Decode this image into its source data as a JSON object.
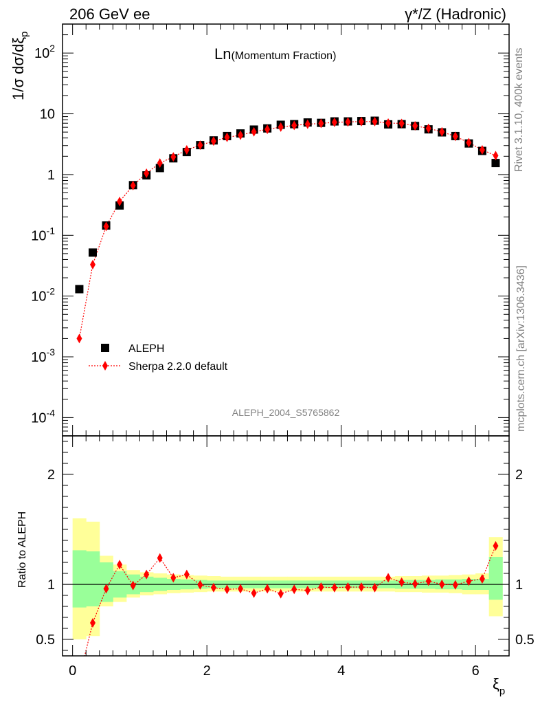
{
  "header": {
    "left_title": "206 GeV ee",
    "right_title_sym": "γ*/Z",
    "right_title_rest": " (Hadronic)"
  },
  "side_labels": {
    "rivet": "Rivet 3.1.10,  400k events",
    "mcplots": "mcplots.cern.ch [arXiv:1306.3436]"
  },
  "chart_data": [
    {
      "type": "scatter",
      "title_big": "Ln",
      "title_small": "(Momentum Fraction)",
      "ylabel": "1/σ dσ/dξ",
      "ylabel_sub": "p",
      "analysis_id": "ALEPH_2004_S5765862",
      "yscale": "log",
      "ylim": [
        5e-05,
        300
      ],
      "xlim": [
        -0.15,
        6.5
      ],
      "y_tick_labels": [
        "10^-4",
        "10^-3",
        "10^-2",
        "10^-1",
        "1",
        "10",
        "10^2"
      ],
      "x": [
        0.1,
        0.3,
        0.5,
        0.7,
        0.9,
        1.1,
        1.3,
        1.5,
        1.7,
        1.9,
        2.1,
        2.3,
        2.5,
        2.7,
        2.9,
        3.1,
        3.3,
        3.5,
        3.7,
        3.9,
        4.1,
        4.3,
        4.5,
        4.7,
        4.9,
        5.1,
        5.3,
        5.5,
        5.7,
        5.9,
        6.1,
        6.3
      ],
      "series": [
        {
          "name": "ALEPH",
          "marker": "square",
          "color": "#000000",
          "values": [
            0.013,
            0.052,
            0.145,
            0.31,
            0.67,
            0.97,
            1.28,
            1.85,
            2.35,
            3.05,
            3.65,
            4.3,
            4.75,
            5.5,
            5.75,
            6.6,
            6.75,
            7.2,
            7.1,
            7.5,
            7.5,
            7.6,
            7.7,
            6.7,
            6.75,
            6.3,
            5.55,
            4.95,
            4.3,
            3.25,
            2.45,
            1.55
          ]
        },
        {
          "name": "Sherpa 2.2.0 default",
          "marker": "diamond",
          "line": "dotted",
          "color": "#ff0000",
          "values": [
            0.002,
            0.033,
            0.14,
            0.36,
            0.66,
            1.05,
            1.55,
            1.95,
            2.55,
            3.05,
            3.55,
            4.1,
            4.45,
            5.05,
            5.55,
            6.05,
            6.45,
            6.75,
            6.95,
            7.25,
            7.35,
            7.45,
            7.45,
            7.05,
            6.95,
            6.35,
            5.75,
            5.05,
            4.25,
            3.35,
            2.55,
            2.05
          ]
        }
      ],
      "legend_position": "bottom-left"
    },
    {
      "type": "line",
      "ylabel": "Ratio to ALEPH",
      "xlabel": "ξ",
      "xlabel_sub": "p",
      "ylim": [
        0.35,
        2.35
      ],
      "xlim": [
        -0.15,
        6.5
      ],
      "y_tick_labels": [
        "0.5",
        "1",
        "2"
      ],
      "x_tick_labels": [
        "0",
        "2",
        "4",
        "6"
      ],
      "reference": 1,
      "band_x": [
        0.0,
        0.2,
        0.4,
        0.6,
        0.8,
        1.0,
        1.2,
        1.4,
        1.6,
        1.8,
        2.0,
        2.2,
        2.4,
        2.6,
        2.8,
        3.0,
        3.2,
        3.4,
        3.6,
        3.8,
        4.0,
        4.2,
        4.4,
        4.6,
        4.8,
        5.0,
        5.2,
        5.4,
        5.6,
        5.8,
        6.0,
        6.2,
        6.4
      ],
      "stat_band": [
        [
          0.79,
          1.31
        ],
        [
          0.8,
          1.3
        ],
        [
          0.84,
          1.2
        ],
        [
          0.88,
          1.12
        ],
        [
          0.91,
          1.09
        ],
        [
          0.93,
          1.07
        ],
        [
          0.94,
          1.06
        ],
        [
          0.95,
          1.05
        ],
        [
          0.955,
          1.045
        ],
        [
          0.96,
          1.04
        ],
        [
          0.965,
          1.035
        ],
        [
          0.965,
          1.035
        ],
        [
          0.965,
          1.035
        ],
        [
          0.965,
          1.035
        ],
        [
          0.965,
          1.035
        ],
        [
          0.965,
          1.035
        ],
        [
          0.965,
          1.035
        ],
        [
          0.965,
          1.035
        ],
        [
          0.965,
          1.035
        ],
        [
          0.965,
          1.035
        ],
        [
          0.965,
          1.035
        ],
        [
          0.965,
          1.035
        ],
        [
          0.965,
          1.035
        ],
        [
          0.965,
          1.035
        ],
        [
          0.96,
          1.04
        ],
        [
          0.96,
          1.04
        ],
        [
          0.96,
          1.04
        ],
        [
          0.955,
          1.045
        ],
        [
          0.955,
          1.045
        ],
        [
          0.95,
          1.05
        ],
        [
          0.95,
          1.05
        ],
        [
          0.86,
          1.25
        ]
      ],
      "total_band": [
        [
          0.5,
          1.6
        ],
        [
          0.53,
          1.57
        ],
        [
          0.8,
          1.26
        ],
        [
          0.84,
          1.18
        ],
        [
          0.88,
          1.13
        ],
        [
          0.9,
          1.11
        ],
        [
          0.91,
          1.1
        ],
        [
          0.92,
          1.09
        ],
        [
          0.925,
          1.085
        ],
        [
          0.93,
          1.08
        ],
        [
          0.935,
          1.075
        ],
        [
          0.935,
          1.07
        ],
        [
          0.935,
          1.07
        ],
        [
          0.935,
          1.07
        ],
        [
          0.935,
          1.07
        ],
        [
          0.935,
          1.07
        ],
        [
          0.935,
          1.07
        ],
        [
          0.935,
          1.07
        ],
        [
          0.935,
          1.07
        ],
        [
          0.935,
          1.07
        ],
        [
          0.935,
          1.07
        ],
        [
          0.935,
          1.07
        ],
        [
          0.935,
          1.07
        ],
        [
          0.935,
          1.07
        ],
        [
          0.93,
          1.075
        ],
        [
          0.93,
          1.075
        ],
        [
          0.925,
          1.08
        ],
        [
          0.925,
          1.08
        ],
        [
          0.92,
          1.085
        ],
        [
          0.91,
          1.09
        ],
        [
          0.91,
          1.1
        ],
        [
          0.71,
          1.43
        ]
      ],
      "band_colors": {
        "stat": "#99ff99",
        "total": "#ffff99"
      },
      "x": [
        0.1,
        0.3,
        0.5,
        0.7,
        0.9,
        1.1,
        1.3,
        1.5,
        1.7,
        1.9,
        2.1,
        2.3,
        2.5,
        2.7,
        2.9,
        3.1,
        3.3,
        3.5,
        3.7,
        3.9,
        4.1,
        4.3,
        4.5,
        4.7,
        4.9,
        5.1,
        5.3,
        5.5,
        5.7,
        5.9,
        6.1,
        6.3
      ],
      "series": [
        {
          "name": "Sherpa 2.2.0 default",
          "marker": "diamond",
          "line": "dotted",
          "color": "#ff0000",
          "values": [
            0.15,
            0.65,
            0.96,
            1.18,
            0.99,
            1.09,
            1.24,
            1.06,
            1.09,
            0.995,
            0.97,
            0.955,
            0.96,
            0.92,
            0.96,
            0.915,
            0.955,
            0.945,
            0.975,
            0.97,
            0.975,
            0.975,
            0.97,
            1.06,
            1.02,
            1.005,
            1.03,
            1.0,
            0.995,
            1.03,
            1.05,
            1.35
          ]
        }
      ]
    }
  ]
}
